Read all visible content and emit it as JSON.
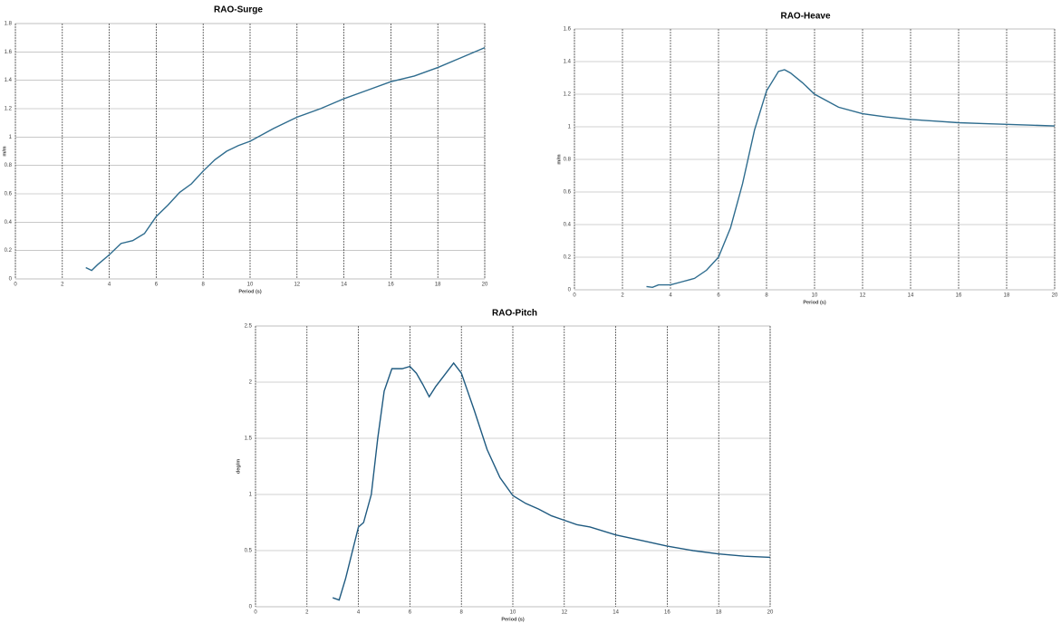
{
  "chart_data": [
    {
      "type": "line",
      "title": "RAO-Surge",
      "xlabel": "Period (s)",
      "ylabel": "m/m",
      "color": "#2e6c8e",
      "x": [
        3,
        3.25,
        3.5,
        4,
        4.5,
        5,
        5.5,
        6,
        6.5,
        7,
        7.5,
        8,
        8.5,
        9,
        9.5,
        10,
        11,
        12,
        13,
        14,
        15,
        16,
        17,
        18,
        19,
        20
      ],
      "values": [
        0.08,
        0.06,
        0.1,
        0.17,
        0.25,
        0.27,
        0.32,
        0.44,
        0.52,
        0.61,
        0.67,
        0.76,
        0.84,
        0.9,
        0.94,
        0.97,
        1.06,
        1.14,
        1.2,
        1.27,
        1.33,
        1.39,
        1.43,
        1.49,
        1.56,
        1.63
      ],
      "xlim": [
        0,
        20
      ],
      "xticks": [
        0,
        2,
        4,
        6,
        8,
        10,
        12,
        14,
        16,
        18,
        20
      ],
      "ylim": [
        0,
        1.8
      ],
      "yticks": [
        0,
        0.2,
        0.4,
        0.6,
        0.8,
        1,
        1.2,
        1.4,
        1.6,
        1.8
      ],
      "grid": true
    },
    {
      "type": "line",
      "title": "RAO-Heave",
      "xlabel": "Period (s)",
      "ylabel": "m/m",
      "color": "#2e6c8e",
      "x": [
        3,
        3.25,
        3.5,
        4,
        4.5,
        5,
        5.5,
        6,
        6.5,
        7,
        7.5,
        8,
        8.5,
        8.75,
        9,
        9.5,
        10,
        11,
        12,
        13,
        14,
        15,
        16,
        17,
        18,
        19,
        20
      ],
      "values": [
        0.02,
        0.015,
        0.03,
        0.03,
        0.05,
        0.07,
        0.12,
        0.2,
        0.38,
        0.65,
        0.98,
        1.22,
        1.34,
        1.35,
        1.33,
        1.27,
        1.2,
        1.12,
        1.08,
        1.06,
        1.045,
        1.035,
        1.025,
        1.02,
        1.015,
        1.01,
        1.005
      ],
      "xlim": [
        0,
        20
      ],
      "xticks": [
        0,
        2,
        4,
        6,
        8,
        10,
        12,
        14,
        16,
        18,
        20
      ],
      "ylim": [
        0,
        1.6
      ],
      "yticks": [
        0,
        0.2,
        0.4,
        0.6,
        0.8,
        1,
        1.2,
        1.4,
        1.6
      ],
      "grid": true
    },
    {
      "type": "line",
      "title": "RAO-Pitch",
      "xlabel": "Period (s)",
      "ylabel": "deg/m",
      "color": "#1f5a80",
      "x": [
        3,
        3.25,
        3.5,
        4,
        4.2,
        4.5,
        4.75,
        5,
        5.3,
        5.7,
        6,
        6.25,
        6.5,
        6.75,
        7,
        7.3,
        7.7,
        8,
        8.5,
        9,
        9.5,
        10,
        10.5,
        11,
        11.5,
        12,
        12.5,
        13,
        14,
        15,
        16,
        17,
        18,
        19,
        20
      ],
      "values": [
        0.08,
        0.06,
        0.25,
        0.71,
        0.75,
        1.0,
        1.5,
        1.92,
        2.12,
        2.12,
        2.14,
        2.08,
        1.98,
        1.87,
        1.96,
        2.05,
        2.17,
        2.08,
        1.75,
        1.4,
        1.15,
        0.99,
        0.92,
        0.87,
        0.81,
        0.77,
        0.73,
        0.71,
        0.64,
        0.59,
        0.54,
        0.5,
        0.47,
        0.45,
        0.44
      ],
      "xlim": [
        0,
        20
      ],
      "xticks": [
        0,
        2,
        4,
        6,
        8,
        10,
        12,
        14,
        16,
        18,
        20
      ],
      "ylim": [
        0,
        2.5
      ],
      "yticks": [
        0,
        0.5,
        1,
        1.5,
        2,
        2.5
      ],
      "grid": true
    }
  ]
}
